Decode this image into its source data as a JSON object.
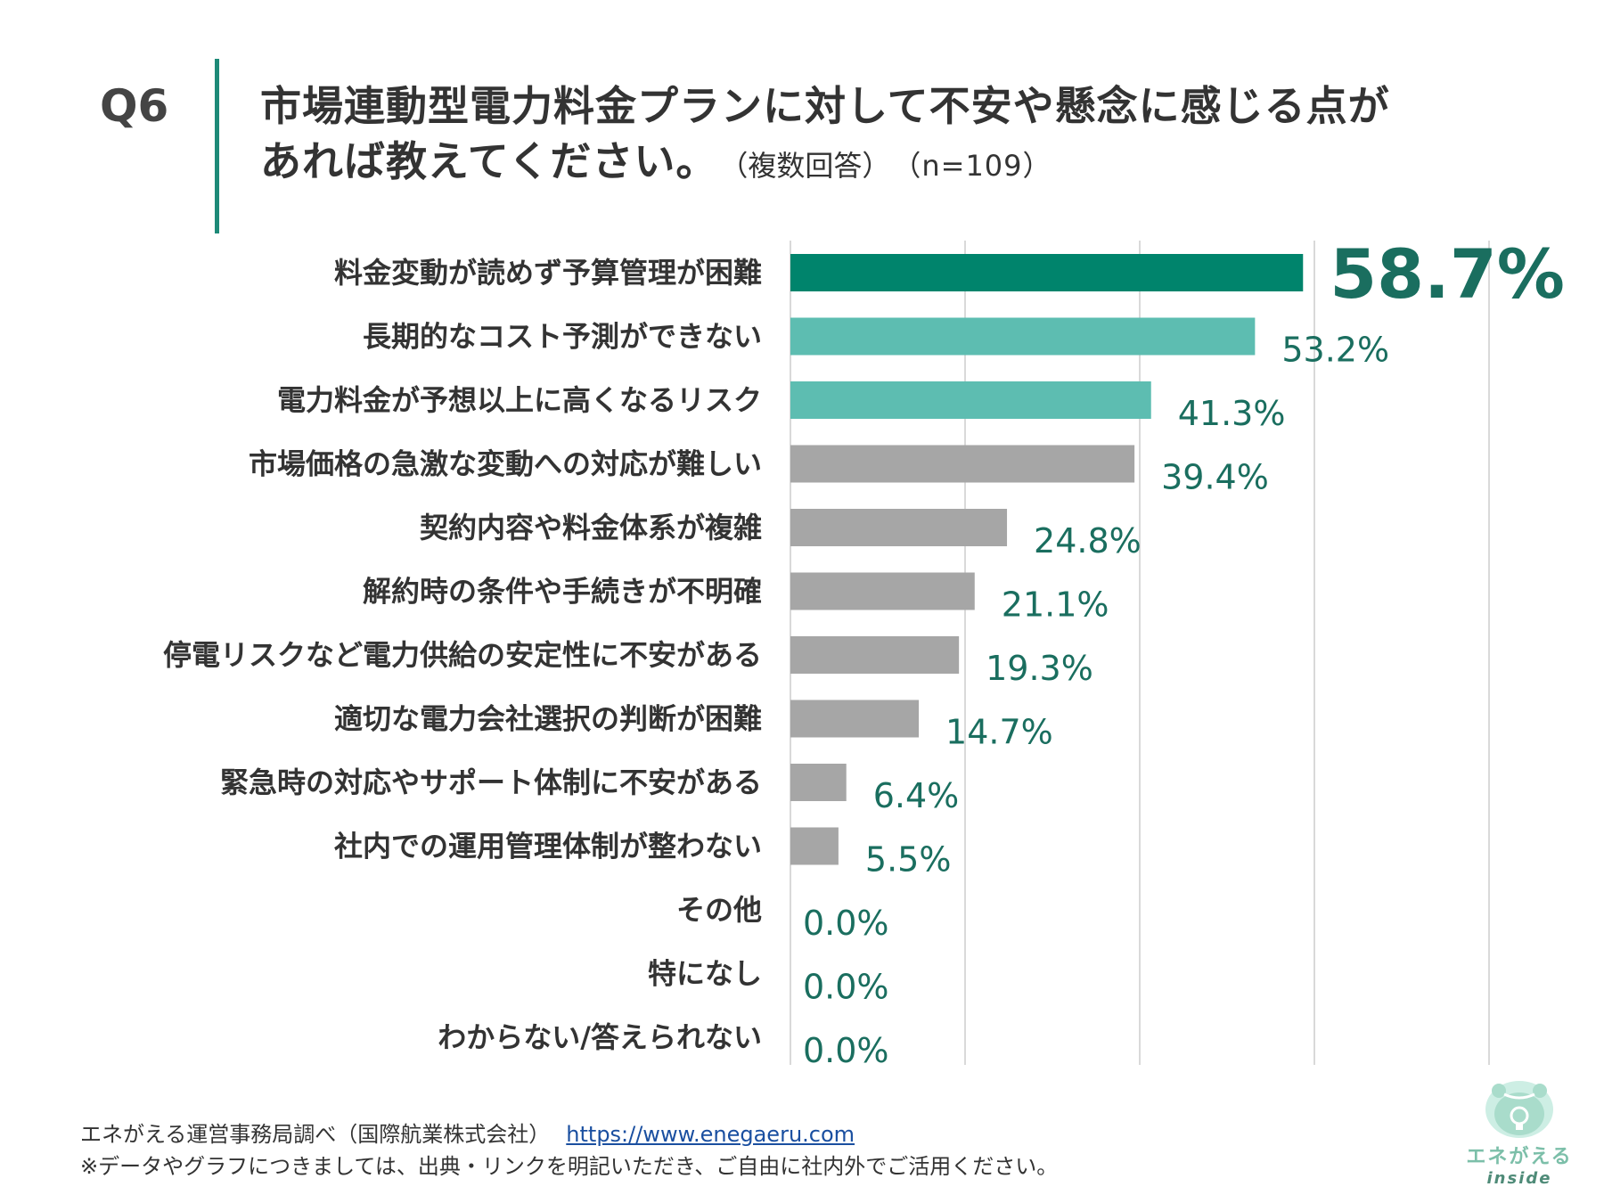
{
  "question": {
    "label": "Q6",
    "title_line1": "市場連動型電力料金プランに対して不安や懸念に感じる点が",
    "title_line2": "あれば教えてください。",
    "note": "（複数回答）",
    "sample": "（n=109）"
  },
  "chart_data": {
    "type": "bar",
    "orientation": "horizontal",
    "categories": [
      "料金変動が読めず予算管理が困難",
      "長期的なコスト予測ができない",
      "電力料金が予想以上に高くなるリスク",
      "市場価格の急激な変動への対応が難しい",
      "契約内容や料金体系が複雑",
      "解約時の条件や手続きが不明確",
      "停電リスクなど電力供給の安定性に不安がある",
      "適切な電力会社選択の判断が困難",
      "緊急時の対応やサポート体制に不安がある",
      "社内での運用管理体制が整わない",
      "その他",
      "特になし",
      "わからない/答えられない"
    ],
    "values": [
      58.7,
      53.2,
      41.3,
      39.4,
      24.8,
      21.1,
      19.3,
      14.7,
      6.4,
      5.5,
      0.0,
      0.0,
      0.0
    ],
    "labels": [
      "58.7%",
      "53.2%",
      "41.3%",
      "39.4%",
      "24.8%",
      "21.1%",
      "19.3%",
      "14.7%",
      "6.4%",
      "5.5%",
      "0.0%",
      "0.0%",
      "0.0%"
    ],
    "xlim": [
      0,
      80
    ],
    "grid": true,
    "colors": {
      "top": "#00846c",
      "high": "#5dbdb1",
      "other": "#a6a6a6",
      "label": "#1a6e5f",
      "grid": "#d9d9d9"
    }
  },
  "footer": {
    "source": "エネがえる運営事務局調べ（国際航業株式会社）",
    "link": "https://www.enegaeru.com",
    "note": "※データやグラフにつきましては、出典・リンクを明記いただき、ご自由に社内外でご活用ください。"
  },
  "logo": {
    "name": "エネがえる",
    "sub": "inside"
  }
}
